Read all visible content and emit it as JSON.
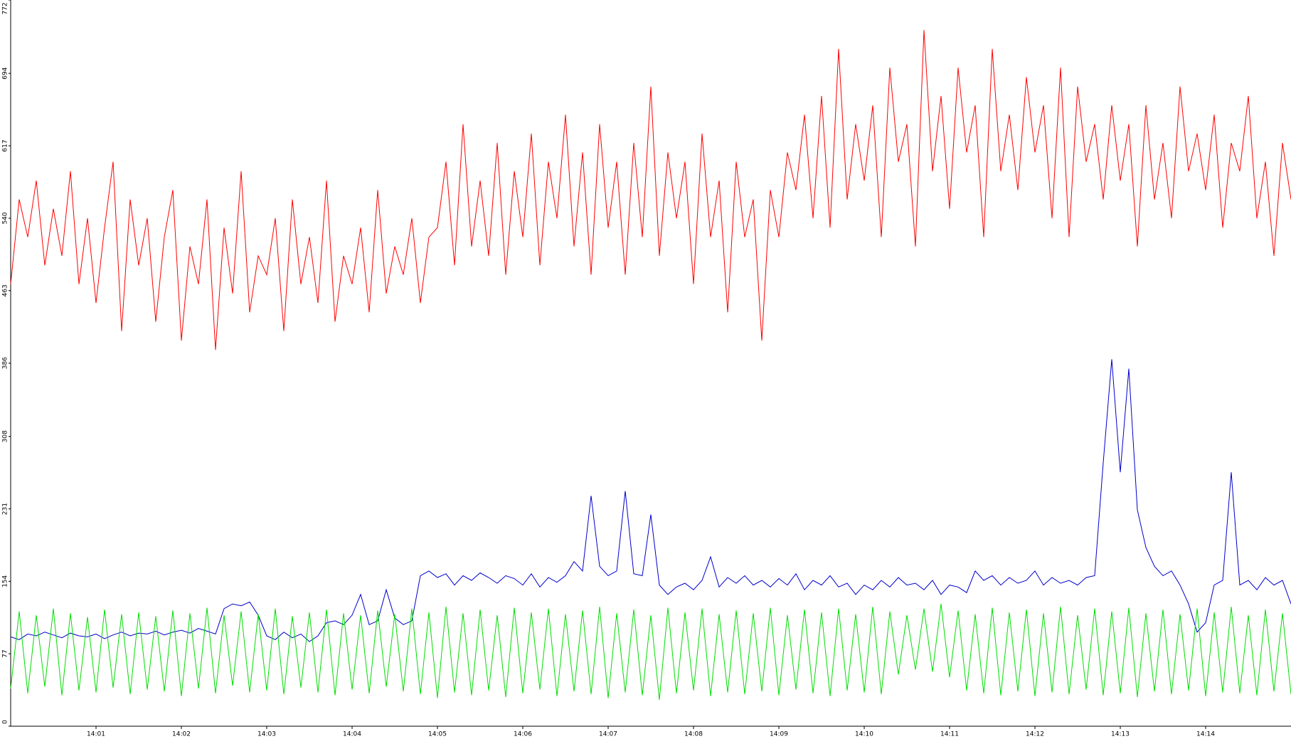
{
  "chart_data": {
    "type": "line",
    "x": [
      0.0,
      0.1,
      0.2,
      0.3,
      0.4,
      0.5,
      0.6,
      0.7,
      0.8,
      0.9,
      1.0,
      1.1,
      1.2,
      1.3,
      1.4,
      1.5,
      1.6,
      1.7,
      1.8,
      1.9,
      2.0,
      2.1,
      2.2,
      2.3,
      2.4,
      2.5,
      2.6,
      2.7,
      2.8,
      2.9,
      3.0,
      3.1,
      3.2,
      3.3,
      3.4,
      3.5,
      3.6,
      3.7,
      3.8,
      3.9,
      4.0,
      4.1,
      4.2,
      4.3,
      4.4,
      4.5,
      4.6,
      4.7,
      4.8,
      4.9,
      5.0,
      5.1,
      5.2,
      5.3,
      5.4,
      5.5,
      5.6,
      5.7,
      5.8,
      5.9,
      6.0,
      6.1,
      6.2,
      6.3,
      6.4,
      6.5,
      6.6,
      6.7,
      6.8,
      6.9,
      7.0,
      7.1,
      7.2,
      7.3,
      7.4,
      7.5,
      7.6,
      7.7,
      7.8,
      7.9,
      8.0,
      8.1,
      8.2,
      8.3,
      8.4,
      8.5,
      8.6,
      8.7,
      8.8,
      8.9,
      9.0,
      9.1,
      9.2,
      9.3,
      9.4,
      9.5,
      9.6,
      9.7,
      9.8,
      9.9,
      10.0,
      10.1,
      10.2,
      10.3,
      10.4,
      10.5,
      10.6,
      10.7,
      10.8,
      10.9,
      11.0,
      11.1,
      11.2,
      11.3,
      11.4,
      11.5,
      11.6,
      11.7,
      11.8,
      11.9,
      12.0,
      12.1,
      12.2,
      12.3,
      12.4,
      12.5,
      12.6,
      12.7,
      12.8,
      12.9,
      13.0,
      13.1,
      13.2,
      13.3,
      13.4,
      13.5,
      13.6,
      13.7,
      13.8,
      13.9,
      14.0,
      14.1,
      14.2,
      14.3,
      14.4,
      14.5,
      14.6,
      14.7,
      14.8,
      14.9,
      15.0
    ],
    "series": [
      {
        "color": "#ff0000",
        "values": [
          470,
          560,
          520,
          580,
          490,
          550,
          500,
          590,
          470,
          540,
          450,
          530,
          600,
          420,
          560,
          490,
          540,
          430,
          520,
          570,
          410,
          510,
          470,
          560,
          400,
          530,
          460,
          590,
          440,
          500,
          480,
          540,
          420,
          560,
          470,
          520,
          450,
          580,
          430,
          500,
          470,
          530,
          440,
          570,
          460,
          510,
          480,
          540,
          450,
          520,
          530,
          600,
          490,
          640,
          510,
          580,
          500,
          620,
          480,
          590,
          520,
          630,
          490,
          600,
          540,
          650,
          510,
          610,
          480,
          640,
          530,
          600,
          480,
          620,
          520,
          680,
          500,
          610,
          540,
          600,
          470,
          630,
          520,
          580,
          440,
          600,
          520,
          560,
          410,
          570,
          520,
          610,
          570,
          650,
          540,
          670,
          530,
          720,
          560,
          640,
          580,
          660,
          520,
          700,
          600,
          640,
          510,
          740,
          590,
          670,
          550,
          700,
          610,
          660,
          520,
          720,
          590,
          650,
          570,
          690,
          610,
          660,
          540,
          700,
          520,
          680,
          600,
          640,
          560,
          660,
          580,
          640,
          510,
          660,
          560,
          620,
          540,
          680,
          590,
          630,
          570,
          650,
          530,
          620,
          590,
          670,
          540,
          600,
          500,
          620,
          560
        ]
      },
      {
        "color": "#0000cc",
        "values": [
          95,
          92,
          98,
          96,
          100,
          97,
          94,
          99,
          96,
          95,
          98,
          93,
          97,
          100,
          96,
          99,
          98,
          101,
          97,
          100,
          102,
          99,
          104,
          101,
          98,
          125,
          130,
          128,
          132,
          118,
          96,
          92,
          100,
          94,
          98,
          90,
          96,
          110,
          112,
          108,
          118,
          140,
          108,
          112,
          145,
          115,
          108,
          112,
          160,
          165,
          158,
          162,
          150,
          160,
          155,
          163,
          158,
          152,
          160,
          157,
          150,
          162,
          148,
          158,
          153,
          160,
          175,
          165,
          245,
          170,
          160,
          165,
          250,
          162,
          160,
          225,
          150,
          140,
          148,
          152,
          145,
          155,
          180,
          148,
          158,
          152,
          160,
          150,
          155,
          148,
          157,
          150,
          162,
          145,
          155,
          150,
          160,
          148,
          152,
          140,
          150,
          145,
          155,
          148,
          158,
          150,
          152,
          145,
          155,
          140,
          150,
          148,
          142,
          165,
          155,
          160,
          150,
          158,
          152,
          155,
          165,
          150,
          158,
          152,
          155,
          150,
          158,
          160,
          280,
          390,
          270,
          380,
          230,
          190,
          170,
          160,
          165,
          150,
          130,
          100,
          110,
          150,
          155,
          270,
          150,
          155,
          145,
          158,
          150,
          155,
          130
        ]
      },
      {
        "color": "#00dd00",
        "values": [
          40,
          122,
          35,
          118,
          42,
          125,
          33,
          120,
          38,
          116,
          36,
          124,
          41,
          119,
          34,
          121,
          39,
          117,
          37,
          123,
          32,
          120,
          40,
          126,
          35,
          118,
          43,
          122,
          36,
          119,
          38,
          125,
          34,
          117,
          41,
          121,
          36,
          124,
          33,
          120,
          39,
          118,
          35,
          123,
          42,
          119,
          37,
          125,
          34,
          121,
          30,
          127,
          36,
          120,
          33,
          124,
          38,
          118,
          31,
          126,
          35,
          121,
          39,
          125,
          32,
          119,
          37,
          123,
          34,
          127,
          30,
          120,
          36,
          124,
          33,
          118,
          28,
          126,
          35,
          121,
          38,
          125,
          32,
          119,
          36,
          123,
          34,
          120,
          37,
          126,
          33,
          118,
          39,
          124,
          35,
          121,
          32,
          125,
          38,
          119,
          36,
          127,
          34,
          122,
          55,
          118,
          60,
          125,
          58,
          130,
          52,
          123,
          38,
          119,
          35,
          126,
          33,
          121,
          37,
          124,
          32,
          120,
          36,
          127,
          34,
          118,
          39,
          125,
          33,
          122,
          35,
          126,
          31,
          120,
          37,
          124,
          34,
          119,
          38,
          125,
          32,
          121,
          36,
          127,
          35,
          118,
          33,
          124,
          37,
          120,
          34
        ]
      }
    ],
    "xlim": [
      0,
      15
    ],
    "xticks": [
      {
        "value": 1,
        "label": "14:01"
      },
      {
        "value": 2,
        "label": "14:02"
      },
      {
        "value": 3,
        "label": "14:03"
      },
      {
        "value": 4,
        "label": "14:04"
      },
      {
        "value": 5,
        "label": "14:05"
      },
      {
        "value": 6,
        "label": "14:06"
      },
      {
        "value": 7,
        "label": "14:07"
      },
      {
        "value": 8,
        "label": "14:08"
      },
      {
        "value": 9,
        "label": "14:09"
      },
      {
        "value": 10,
        "label": "14:10"
      },
      {
        "value": 11,
        "label": "14:11"
      },
      {
        "value": 12,
        "label": "14:12"
      },
      {
        "value": 13,
        "label": "14:13"
      },
      {
        "value": 14,
        "label": "14:14"
      }
    ],
    "ylim": [
      0,
      772
    ],
    "yticks": [
      0,
      77,
      154,
      231,
      308,
      386,
      463,
      540,
      617,
      694,
      772
    ],
    "grid": false
  }
}
